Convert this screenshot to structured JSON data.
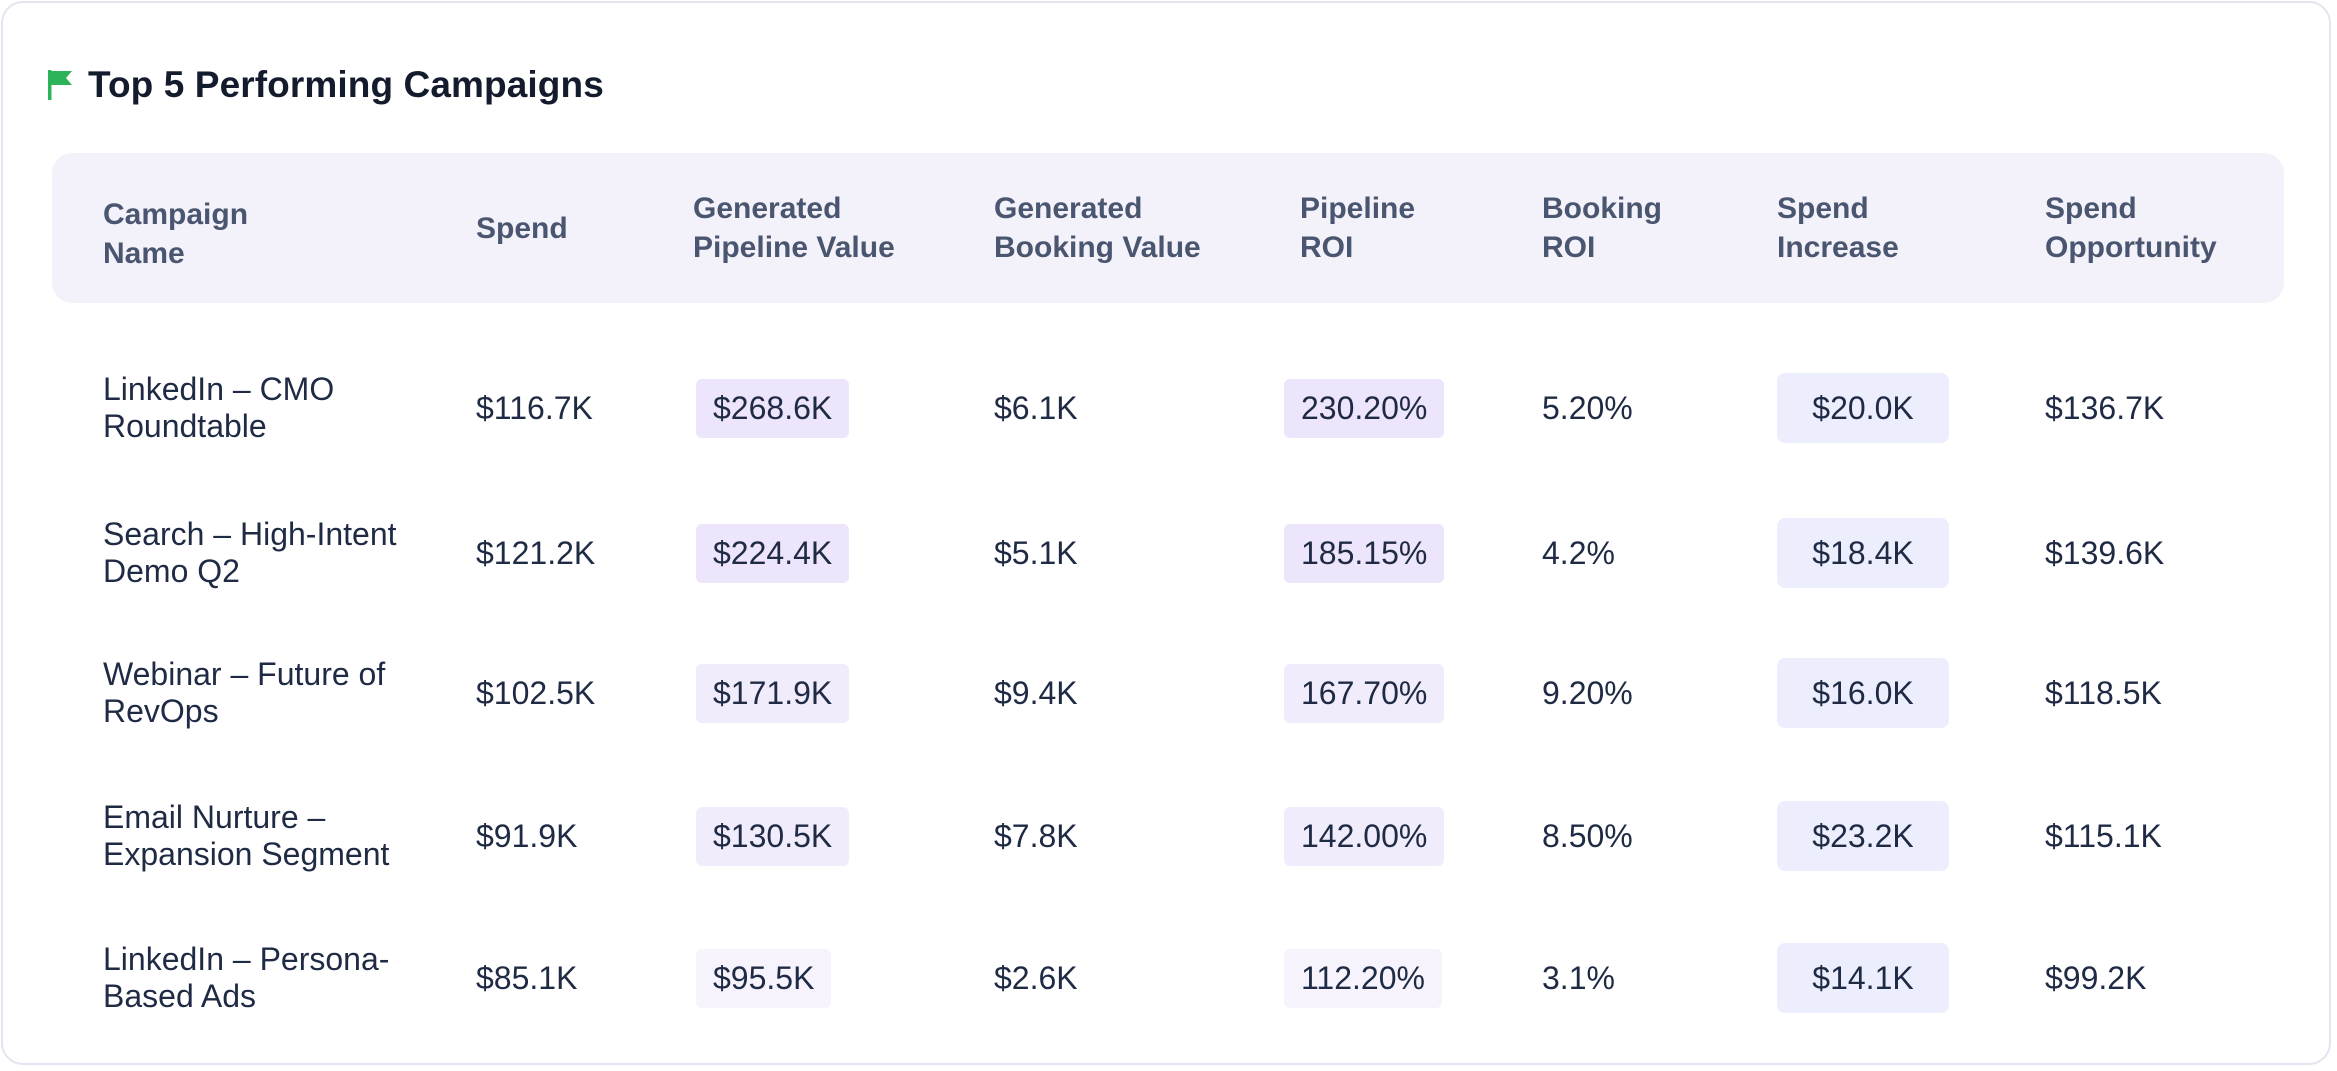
{
  "title": "Top 5 Performing Campaigns",
  "icons": {
    "flag": "flag-icon",
    "flag_color": "#2db35a"
  },
  "colors": {
    "header_bg": "#f3f1f9",
    "pill_strong": "#ece5fb",
    "pill_medium": "#f1ecfc",
    "pill_light": "#f6f3fd",
    "increase_bg": "#ecedfd"
  },
  "columns": [
    "Campaign\nName",
    "Spend",
    "Generated\nPipeline Value",
    "Generated\nBooking Value",
    "Pipeline\nROI",
    "Booking\nROI",
    "Spend\nIncrease",
    "Spend\nOpportunity"
  ],
  "rows": [
    {
      "name": "LinkedIn – CMO Roundtable",
      "spend": "$116.7K",
      "pipeline_value": "$268.6K",
      "booking_value": "$6.1K",
      "pipeline_roi": "230.20%",
      "booking_roi": "5.20%",
      "spend_increase": "$20.0K",
      "spend_opportunity": "$136.7K",
      "pill_level": "strong"
    },
    {
      "name": "Search – High-Intent Demo Q2",
      "spend": "$121.2K",
      "pipeline_value": "$224.4K",
      "booking_value": "$5.1K",
      "pipeline_roi": "185.15%",
      "booking_roi": "4.2%",
      "spend_increase": "$18.4K",
      "spend_opportunity": "$139.6K",
      "pill_level": "strong"
    },
    {
      "name": "Webinar – Future of RevOps",
      "spend": "$102.5K",
      "pipeline_value": "$171.9K",
      "booking_value": "$9.4K",
      "pipeline_roi": "167.70%",
      "booking_roi": "9.20%",
      "spend_increase": "$16.0K",
      "spend_opportunity": "$118.5K",
      "pill_level": "medium"
    },
    {
      "name": "Email Nurture – Expansion Segment",
      "spend": "$91.9K",
      "pipeline_value": "$130.5K",
      "booking_value": "$7.8K",
      "pipeline_roi": "142.00%",
      "booking_roi": "8.50%",
      "spend_increase": "$23.2K",
      "spend_opportunity": "$115.1K",
      "pill_level": "medium"
    },
    {
      "name": "LinkedIn – Persona-Based Ads",
      "spend": "$85.1K",
      "pipeline_value": "$95.5K",
      "booking_value": "$2.6K",
      "pipeline_roi": "112.20%",
      "booking_roi": "3.1%",
      "spend_increase": "$14.1K",
      "spend_opportunity": "$99.2K",
      "pill_level": "light"
    }
  ]
}
